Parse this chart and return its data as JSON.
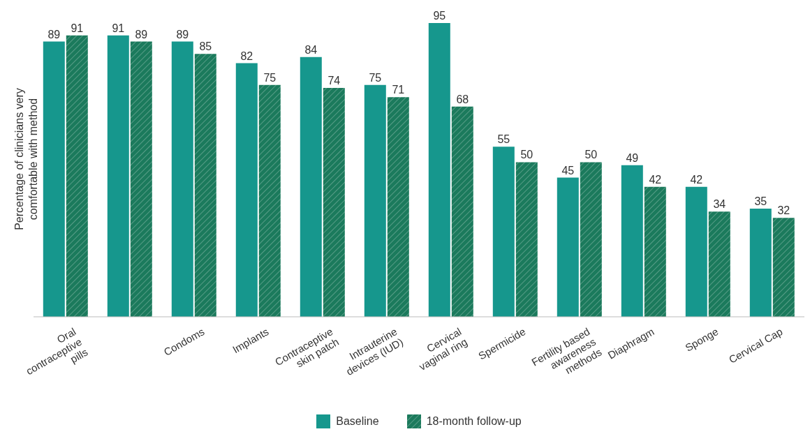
{
  "chart_data": {
    "type": "bar",
    "ylabel": "Percentage of clinicians very comfortable with method",
    "categories": [
      "Oral contraceptive pills",
      null,
      "Condoms",
      "Implants",
      "Contraceptive skin patch",
      "Intrauterine devices (IUD)",
      "Cervical vaginal ring",
      "Spermicide",
      "Fertility based awareness methods",
      "Diaphragm",
      "Sponge",
      "Cervical Cap"
    ],
    "series": [
      {
        "name": "Baseline",
        "color": "#16978d",
        "values": [
          89,
          91,
          89,
          82,
          84,
          75,
          95,
          55,
          45,
          49,
          42,
          35
        ]
      },
      {
        "name": "18-month follow-up",
        "color": "#1b7a5c",
        "values": [
          91,
          89,
          85,
          75,
          74,
          71,
          68,
          50,
          50,
          42,
          34,
          32
        ]
      }
    ],
    "data_labels": true,
    "legend": "bottom",
    "grid": false
  }
}
